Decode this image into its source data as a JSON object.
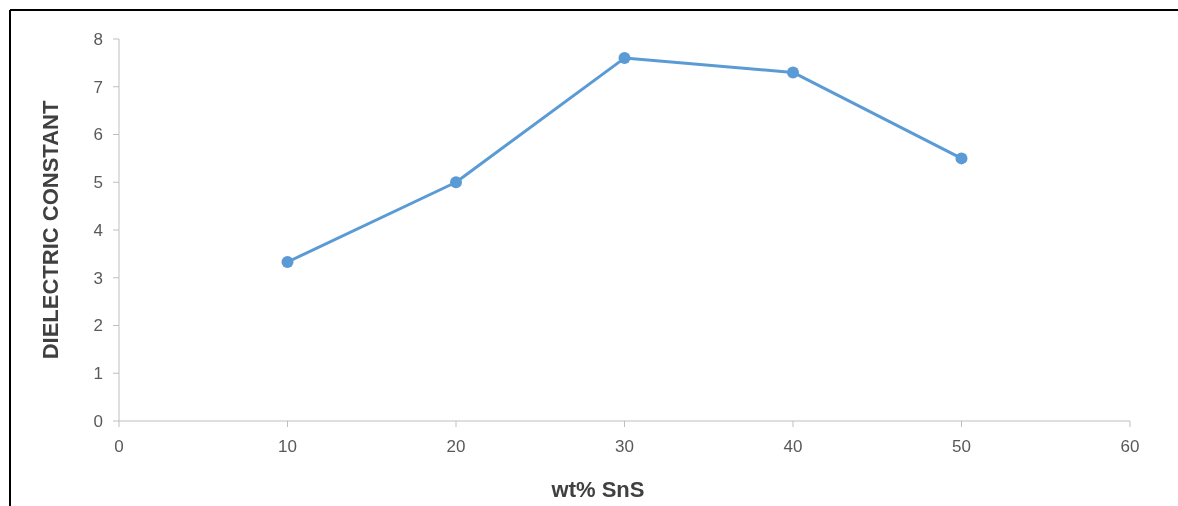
{
  "chart_data": {
    "type": "line",
    "xlabel": "wt% SnS",
    "ylabel": "DIELECTRIC CONSTANT",
    "x": [
      10,
      20,
      30,
      40,
      50
    ],
    "series": [
      {
        "color": "#5b9bd5",
        "values": [
          3.33,
          5.0,
          7.6,
          7.3,
          5.5
        ]
      }
    ],
    "xlim": [
      0,
      60
    ],
    "xticks": [
      0,
      10,
      20,
      30,
      40,
      50,
      60
    ],
    "ylim": [
      0,
      8
    ],
    "yticks": [
      0,
      1,
      2,
      3,
      4,
      5,
      6,
      7,
      8
    ],
    "grid": false,
    "marker": "circle",
    "line_style": "solid"
  }
}
